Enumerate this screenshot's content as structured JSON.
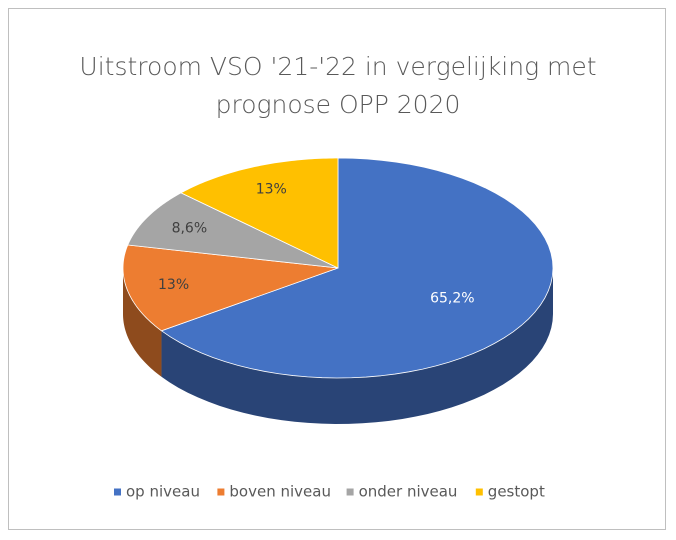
{
  "chart_data": {
    "type": "pie3d",
    "title": "Uitstroom VSO '21-'22 in vergelijking met prognose OPP 2020",
    "categories": [
      "op niveau",
      "boven niveau",
      "onder niveau",
      "gestopt"
    ],
    "values": [
      65.2,
      13,
      8.6,
      13
    ],
    "value_labels": [
      "65,2%",
      "13%",
      "8,6%",
      "13%"
    ],
    "colors": [
      "#4472c4",
      "#ed7d31",
      "#a5a5a5",
      "#ffc000"
    ],
    "legend": "bottom"
  }
}
